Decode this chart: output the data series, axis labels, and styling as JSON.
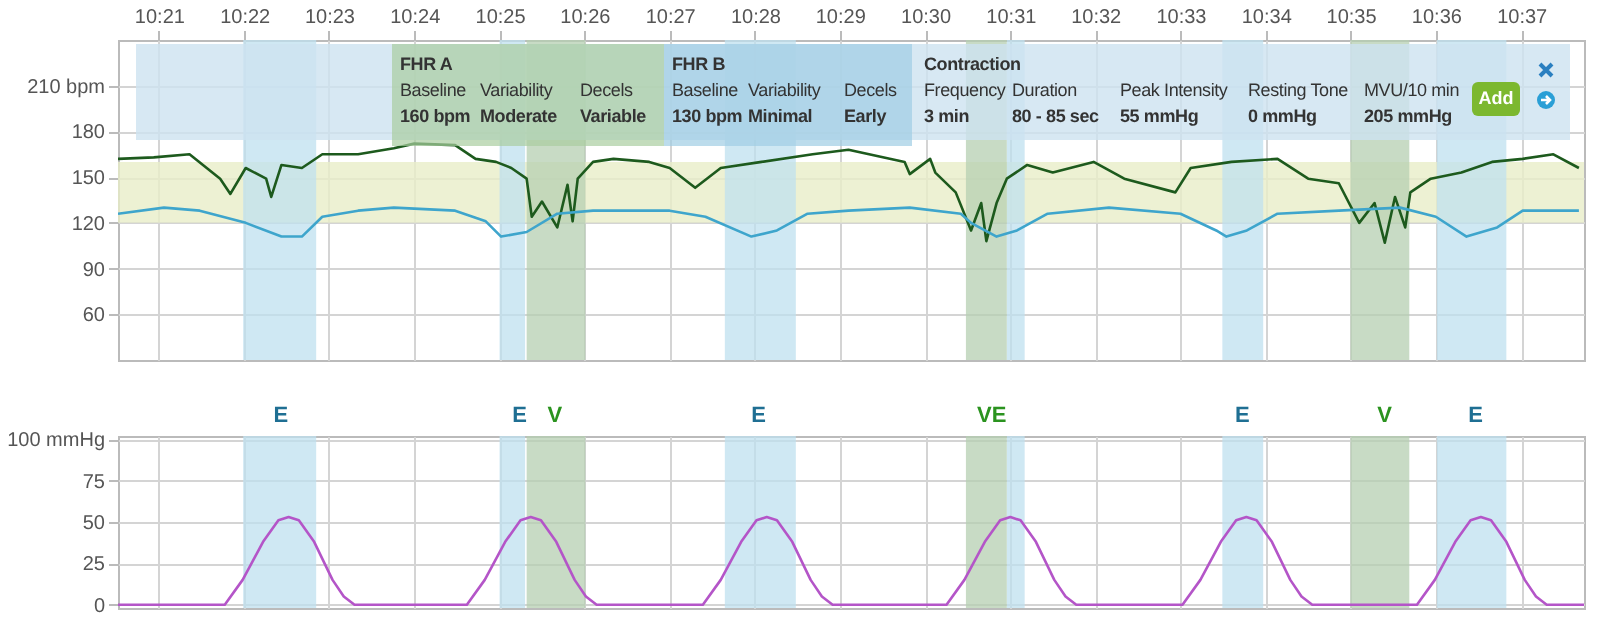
{
  "chart_data": [
    {
      "type": "line",
      "xlim": [
        10.342,
        10.629
      ],
      "xticks": [
        {
          "value": 10.35,
          "label": "10:21"
        },
        {
          "value": 10.3667,
          "label": "10:22"
        },
        {
          "value": 10.3833,
          "label": "10:23"
        },
        {
          "value": 10.4,
          "label": "10:24"
        },
        {
          "value": 10.4167,
          "label": "10:25"
        },
        {
          "value": 10.4333,
          "label": "10:26"
        },
        {
          "value": 10.45,
          "label": "10:27"
        },
        {
          "value": 10.4667,
          "label": "10:28"
        },
        {
          "value": 10.4833,
          "label": "10:29"
        },
        {
          "value": 10.5,
          "label": "10:30"
        },
        {
          "value": 10.5167,
          "label": "10:31"
        },
        {
          "value": 10.5333,
          "label": "10:32"
        },
        {
          "value": 10.55,
          "label": "10:33"
        },
        {
          "value": 10.5667,
          "label": "10:34"
        },
        {
          "value": 10.5833,
          "label": "10:35"
        },
        {
          "value": 10.6,
          "label": "10:36"
        },
        {
          "value": 10.6167,
          "label": "10:37"
        }
      ],
      "ylim": [
        30,
        240
      ],
      "yticks": [
        60,
        90,
        120,
        150,
        180,
        {
          "value": 210,
          "label": "210 bpm"
        }
      ],
      "grid": true,
      "series": [
        {
          "color": "#1d5a1d",
          "x": [
            10.342,
            10.349,
            10.356,
            10.362,
            10.364,
            10.367,
            10.371,
            10.372,
            10.374,
            10.378,
            10.382,
            10.389,
            10.396,
            10.4,
            10.408,
            10.412,
            10.416,
            10.419,
            10.422,
            10.423,
            10.425,
            10.428,
            10.43,
            10.431,
            10.432,
            10.435,
            10.439,
            10.446,
            10.45,
            10.455,
            10.46,
            10.468,
            10.478,
            10.485,
            10.496,
            10.497,
            10.501,
            10.502,
            10.506,
            10.509,
            10.511,
            10.512,
            10.514,
            10.516,
            10.52,
            10.525,
            10.533,
            10.539,
            10.549,
            10.552,
            10.56,
            10.569,
            10.575,
            10.581,
            10.585,
            10.588,
            10.59,
            10.592,
            10.594,
            10.595,
            10.599,
            10.605,
            10.611,
            10.617,
            10.623,
            10.628
          ],
          "values": [
            162,
            163,
            165,
            149,
            139,
            156,
            149,
            137,
            158,
            156,
            165,
            165,
            169,
            172,
            171,
            162,
            160,
            156,
            149,
            124,
            134,
            117,
            145,
            121,
            149,
            160,
            162,
            160,
            156,
            143,
            156,
            160,
            165,
            168,
            160,
            152,
            162,
            153,
            140,
            115,
            133,
            108,
            133,
            149,
            158,
            153,
            160,
            149,
            140,
            156,
            160,
            162,
            149,
            146,
            120,
            133,
            107,
            137,
            117,
            140,
            149,
            153,
            160,
            162,
            165,
            156
          ]
        },
        {
          "color": "#3ea5cc",
          "x": [
            10.342,
            10.351,
            10.358,
            10.367,
            10.374,
            10.378,
            10.382,
            10.389,
            10.396,
            10.408,
            10.414,
            10.417,
            10.422,
            10.428,
            10.435,
            10.45,
            10.457,
            10.466,
            10.471,
            10.477,
            10.485,
            10.497,
            10.507,
            10.509,
            10.514,
            10.518,
            10.524,
            10.536,
            10.55,
            10.557,
            10.559,
            10.563,
            10.569,
            10.581,
            10.593,
            10.6,
            10.606,
            10.612,
            10.617,
            10.628
          ],
          "values": [
            126,
            130,
            128,
            120,
            111,
            111,
            124,
            128,
            130,
            128,
            121,
            111,
            114,
            126,
            128,
            128,
            124,
            111,
            115,
            126,
            128,
            130,
            126,
            120,
            111,
            115,
            126,
            130,
            126,
            115,
            111,
            115,
            126,
            128,
            130,
            124,
            111,
            117,
            128,
            128
          ]
        }
      ],
      "bands": [
        {
          "axis": "y",
          "from": 120,
          "to": 160,
          "color": "#e9eec8"
        },
        {
          "axis": "x",
          "from": 10.3665,
          "to": 10.3808,
          "color": "#bfe0ef"
        },
        {
          "axis": "x",
          "from": 10.4167,
          "to": 10.4217,
          "color": "#bfe0ef"
        },
        {
          "axis": "x",
          "from": 10.4608,
          "to": 10.4747,
          "color": "#bfe0ef"
        },
        {
          "axis": "x",
          "from": 10.516,
          "to": 10.5195,
          "color": "#bfe0ef"
        },
        {
          "axis": "x",
          "from": 10.5582,
          "to": 10.5662,
          "color": "#bfe0ef"
        },
        {
          "axis": "x",
          "from": 10.6002,
          "to": 10.6138,
          "color": "#bfe0ef"
        },
        {
          "axis": "x",
          "from": 10.422,
          "to": 10.4335,
          "color": "#b5cfb2"
        },
        {
          "axis": "x",
          "from": 10.508,
          "to": 10.516,
          "color": "#b5cfb2"
        },
        {
          "axis": "x",
          "from": 10.5833,
          "to": 10.5948,
          "color": "#b5cfb2"
        }
      ],
      "annotations": [
        "FHR A",
        "Baseline",
        "160 bpm",
        "Variability",
        "Moderate",
        "Decels",
        "Variable",
        "FHR B",
        "Baseline",
        "130 bpm",
        "Variability",
        "Minimal",
        "Decels",
        "Early",
        "Contraction",
        "Frequency",
        "3 min",
        "Duration",
        "80 - 85 sec",
        "Peak Intensity",
        "55 mmHg",
        "Resting Tone",
        "0 mmHg",
        "MVU/10 min",
        "205 mmHg",
        "Add"
      ]
    },
    {
      "type": "line",
      "xlim": [
        10.342,
        10.629
      ],
      "xticks": [
        {
          "value": 10.35,
          "label": null
        },
        {
          "value": 10.3667,
          "label": null
        },
        {
          "value": 10.3833,
          "label": null
        },
        {
          "value": 10.4,
          "label": null
        },
        {
          "value": 10.4167,
          "label": null
        },
        {
          "value": 10.4333,
          "label": null
        },
        {
          "value": 10.45,
          "label": null
        },
        {
          "value": 10.4667,
          "label": null
        },
        {
          "value": 10.4833,
          "label": null
        },
        {
          "value": 10.5,
          "label": null
        },
        {
          "value": 10.5167,
          "label": null
        },
        {
          "value": 10.5333,
          "label": null
        },
        {
          "value": 10.55,
          "label": null
        },
        {
          "value": 10.5667,
          "label": null
        },
        {
          "value": 10.5833,
          "label": null
        },
        {
          "value": 10.6,
          "label": null
        },
        {
          "value": 10.6167,
          "label": null
        }
      ],
      "ylim": [
        -2,
        102
      ],
      "yticks": [
        0,
        25,
        50,
        75,
        {
          "value": 100,
          "label": "100 mmHg"
        }
      ],
      "grid": true,
      "tick_labels": "y",
      "series": [
        {
          "color": "#b455c8",
          "x": [
            10.342,
            10.3629,
            10.3664,
            10.3704,
            10.3734,
            10.3754,
            10.3774,
            10.3804,
            10.384,
            10.3862,
            10.3883,
            10.4103,
            10.4138,
            10.4178,
            10.4208,
            10.4228,
            10.4248,
            10.4278,
            10.4314,
            10.4336,
            10.4357,
            10.4565,
            10.46,
            10.464,
            10.467,
            10.469,
            10.471,
            10.474,
            10.4776,
            10.4798,
            10.4819,
            10.5042,
            10.5077,
            10.5117,
            10.5147,
            10.5167,
            10.5187,
            10.5217,
            10.5253,
            10.5275,
            10.5296,
            10.5504,
            10.5539,
            10.5579,
            10.5609,
            10.5629,
            10.5649,
            10.5679,
            10.5715,
            10.5737,
            10.5758,
            10.5963,
            10.5998,
            10.6038,
            10.6068,
            10.6088,
            10.6108,
            10.6138,
            10.6174,
            10.6196,
            10.6217,
            10.629
          ],
          "values": [
            0,
            0,
            15,
            38,
            51,
            53,
            51,
            38,
            15,
            5,
            0,
            0,
            15,
            38,
            51,
            53,
            51,
            38,
            15,
            5,
            0,
            0,
            15,
            38,
            51,
            53,
            51,
            38,
            15,
            5,
            0,
            0,
            15,
            38,
            51,
            53,
            51,
            38,
            15,
            5,
            0,
            0,
            15,
            38,
            51,
            53,
            51,
            38,
            15,
            5,
            0,
            0,
            15,
            38,
            51,
            53,
            51,
            38,
            15,
            5,
            0,
            0
          ]
        }
      ],
      "bands": [
        {
          "axis": "x",
          "from": 10.3665,
          "to": 10.3808,
          "color": "#bfe0ef"
        },
        {
          "axis": "x",
          "from": 10.4167,
          "to": 10.4217,
          "color": "#bfe0ef"
        },
        {
          "axis": "x",
          "from": 10.4608,
          "to": 10.4747,
          "color": "#bfe0ef"
        },
        {
          "axis": "x",
          "from": 10.516,
          "to": 10.5195,
          "color": "#bfe0ef"
        },
        {
          "axis": "x",
          "from": 10.5582,
          "to": 10.5662,
          "color": "#bfe0ef"
        },
        {
          "axis": "x",
          "from": 10.6002,
          "to": 10.6138,
          "color": "#bfe0ef"
        },
        {
          "axis": "x",
          "from": 10.422,
          "to": 10.4335,
          "color": "#b5cfb2"
        },
        {
          "axis": "x",
          "from": 10.508,
          "to": 10.516,
          "color": "#b5cfb2"
        },
        {
          "axis": "x",
          "from": 10.5833,
          "to": 10.5948,
          "color": "#b5cfb2"
        }
      ],
      "annotations": [
        "E",
        "E",
        "V",
        "E",
        "V",
        "E",
        "E",
        "V",
        "E"
      ]
    }
  ]
}
